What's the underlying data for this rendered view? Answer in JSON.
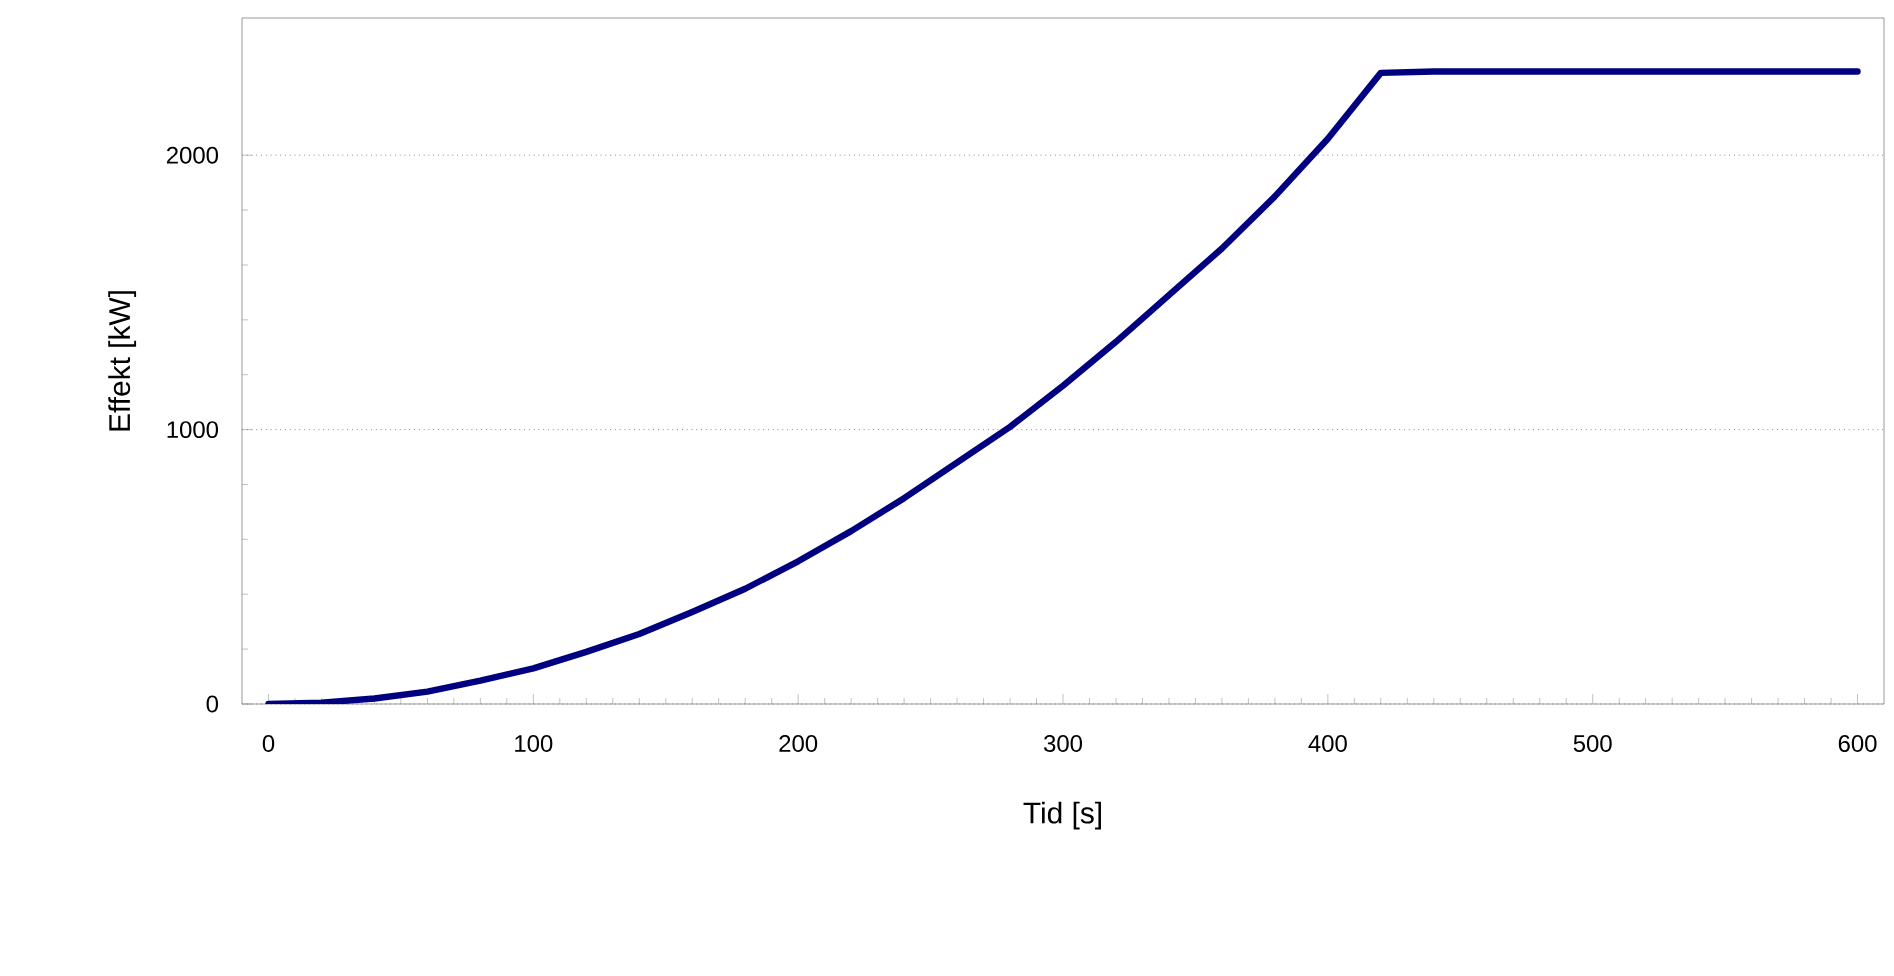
{
  "chart_data": {
    "type": "line",
    "xlabel": "Tid [s]",
    "ylabel": "Effekt [kW]",
    "x": [
      0,
      20,
      40,
      60,
      80,
      100,
      120,
      140,
      160,
      180,
      200,
      220,
      240,
      260,
      280,
      300,
      320,
      340,
      360,
      380,
      400,
      420,
      440,
      500,
      600
    ],
    "values": [
      0,
      5,
      20,
      45,
      85,
      130,
      190,
      255,
      335,
      420,
      520,
      630,
      750,
      880,
      1010,
      1160,
      1320,
      1490,
      1660,
      1850,
      2060,
      2300,
      2305,
      2305,
      2305
    ],
    "color": "#000080",
    "xlim": [
      -10,
      610
    ],
    "ylim": [
      0,
      2500
    ],
    "xticks": [
      0,
      100,
      200,
      300,
      400,
      500,
      600
    ],
    "yticks": [
      0,
      1000,
      2000
    ],
    "grid": "y",
    "line_style": "solid"
  }
}
